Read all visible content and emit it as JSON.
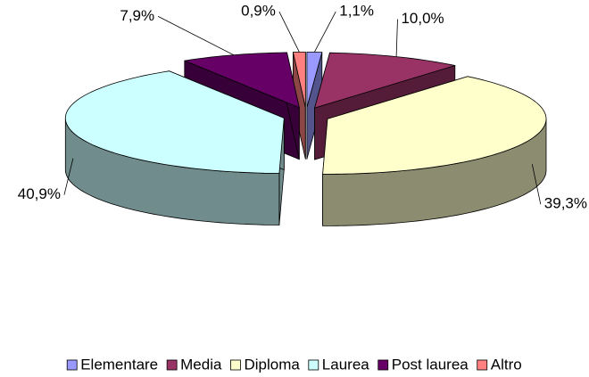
{
  "chart_data": {
    "type": "pie",
    "categories": [
      "Elementare",
      "Media",
      "Diploma",
      "Laurea",
      "Post laurea",
      "Altro"
    ],
    "values": [
      1.1,
      10.0,
      39.3,
      40.9,
      7.9,
      0.9
    ],
    "value_labels": [
      "1,1%",
      "10,0%",
      "39,3%",
      "40,9%",
      "7,9%",
      "0,9%"
    ],
    "colors": [
      "#9999ff",
      "#993366",
      "#ffffcc",
      "#ccffff",
      "#660066",
      "#ff8080"
    ],
    "legend": "bottom"
  }
}
